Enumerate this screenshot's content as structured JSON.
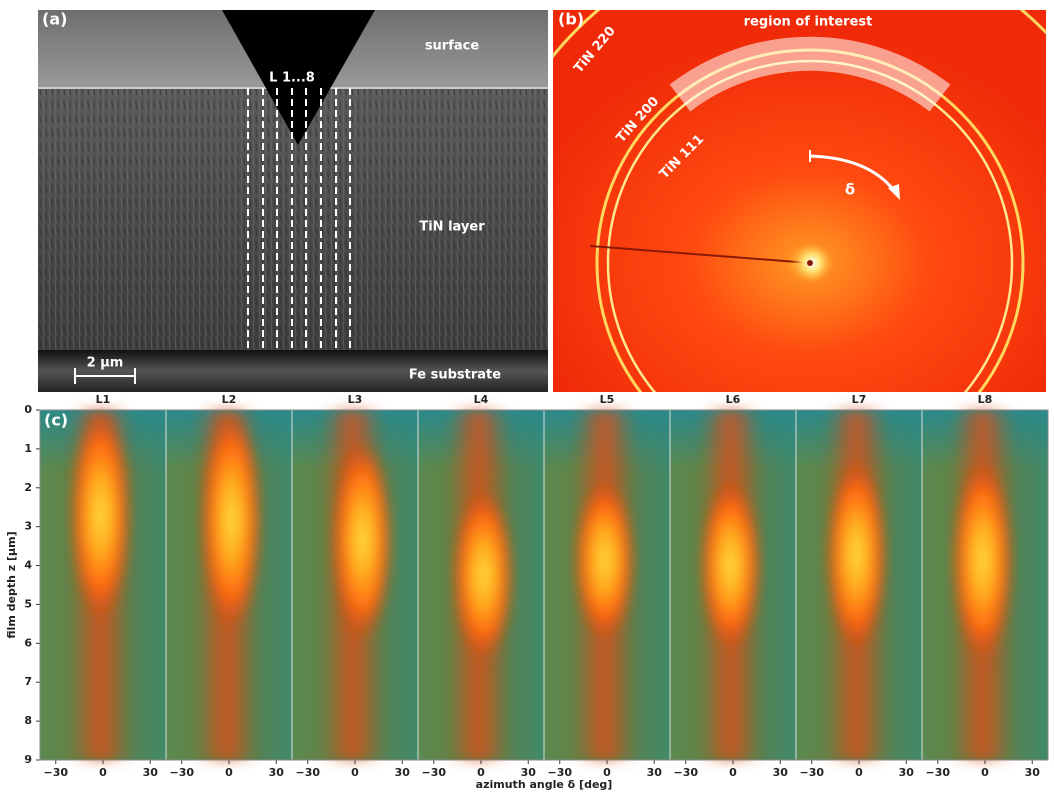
{
  "panel_a": {
    "label": "(a)",
    "surface": "surface",
    "lines": "L 1...8",
    "layer": "TiN layer",
    "substrate": "Fe substrate",
    "scale_bar": "2 µm"
  },
  "panel_b": {
    "label": "(b)",
    "region": "region of interest",
    "ring_220": "TiN 220",
    "ring_200": "TiN 200",
    "ring_111": "TiN 111",
    "angle": "δ"
  },
  "panel_c": {
    "label": "(c)",
    "columns": [
      "L1",
      "L2",
      "L3",
      "L4",
      "L5",
      "L6",
      "L7",
      "L8"
    ],
    "y_axis_label": "film depth z [µm]",
    "ylim": [
      0,
      9
    ],
    "yticks": [
      0,
      1,
      2,
      3,
      4,
      5,
      6,
      7,
      8,
      9
    ],
    "x_axis_label": "azimuth angle δ [deg]",
    "xlim": [
      -40,
      40
    ],
    "xticks": [
      {
        "value": -30,
        "label": "−30"
      },
      0,
      30
    ]
  }
}
